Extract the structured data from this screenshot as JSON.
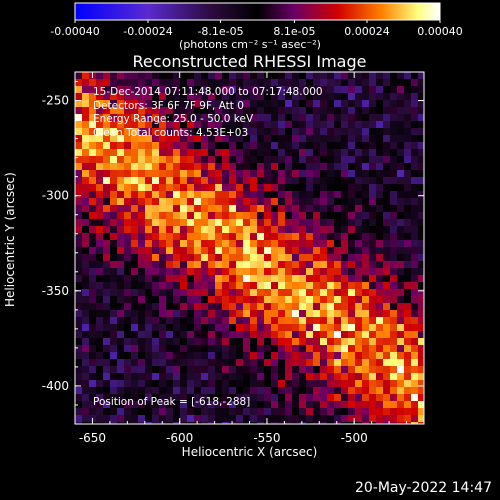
{
  "colorbar": {
    "ticks": [
      -0.0004,
      -0.00024,
      -8.1e-05,
      8.1e-05,
      0.00024,
      0.0004
    ],
    "tick_labels": [
      "-0.00040",
      "-0.00024",
      "-8.1e-05",
      "8.1e-05",
      "0.00024",
      "0.00040"
    ],
    "range": [
      -0.0004,
      0.0004
    ],
    "unit": "(photons cm⁻² s⁻¹ asec⁻²)",
    "colors": [
      "#0000ff",
      "#5a2ad0",
      "#2a0a3a",
      "#000000",
      "#6a0066",
      "#d00000",
      "#ff8000",
      "#ffff80",
      "#ffffff"
    ]
  },
  "chart_data": {
    "type": "heatmap",
    "title": "Reconstructed RHESSI Image",
    "xlabel": "Heliocentric X (arcsec)",
    "ylabel": "Heliocentric Y (arcsec)",
    "xlim": [
      -660,
      -460
    ],
    "ylim": [
      -420,
      -235
    ],
    "x_ticks": [
      -650,
      -600,
      -550,
      -500
    ],
    "y_ticks": [
      -250,
      -300,
      -350,
      -400
    ],
    "grid": false,
    "info_lines": [
      "15-Dec-2014 07:11:48.000 to 07:17:48.000",
      "Detectors: 3F 6F 7F 9F, Att 0",
      "Energy Range: 25.0 - 50.0 keV",
      "Clean     Total counts: 4.53E+03"
    ],
    "peak_label": "Position of Peak = [-618,-288]",
    "peak": [
      -618,
      -288
    ]
  },
  "timestamp": "20-May-2022 14:47"
}
